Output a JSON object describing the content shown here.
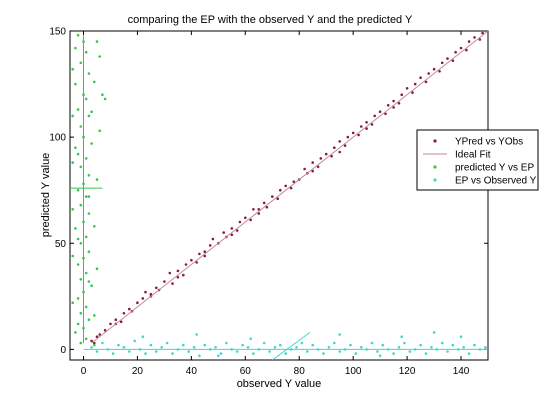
{
  "chart_data": {
    "type": "scatter",
    "title": "comparing the EP with the observed Y and the predicted Y",
    "xlabel": "observed Y value",
    "ylabel": "predicted Y value",
    "xlim": [
      -5,
      150
    ],
    "ylim": [
      -5,
      150
    ],
    "xticks": [
      0,
      20,
      40,
      60,
      80,
      100,
      120,
      140
    ],
    "yticks": [
      0,
      50,
      100,
      150
    ],
    "grid": false,
    "legend_position": "right",
    "legend": [
      {
        "label": "YPred vs YObs",
        "marker": "dot",
        "color": "#8b1a3a"
      },
      {
        "label": "Ideal Fit",
        "marker": "line",
        "color": "#c08aa8"
      },
      {
        "label": "predicted Y vs EP",
        "marker": "dot",
        "color": "#33c84a"
      },
      {
        "label": "EP vs Observed Y",
        "marker": "dot",
        "color": "#3fd8c8"
      }
    ],
    "series": [
      {
        "name": "YPred vs YObs",
        "style": "points",
        "color": "#8b1a3a",
        "points": [
          [
            3,
            4
          ],
          [
            4,
            3
          ],
          [
            5,
            6
          ],
          [
            6,
            7
          ],
          [
            8,
            9
          ],
          [
            10,
            12
          ],
          [
            12,
            14
          ],
          [
            14,
            13
          ],
          [
            15,
            17
          ],
          [
            17,
            19
          ],
          [
            18,
            18
          ],
          [
            20,
            22
          ],
          [
            22,
            24
          ],
          [
            23,
            27
          ],
          [
            25,
            25
          ],
          [
            27,
            29
          ],
          [
            28,
            28
          ],
          [
            30,
            32
          ],
          [
            32,
            36
          ],
          [
            33,
            31
          ],
          [
            35,
            37
          ],
          [
            37,
            35
          ],
          [
            38,
            40
          ],
          [
            40,
            42
          ],
          [
            42,
            41
          ],
          [
            43,
            45
          ],
          [
            45,
            44
          ],
          [
            47,
            49
          ],
          [
            48,
            52
          ],
          [
            50,
            50
          ],
          [
            52,
            55
          ],
          [
            53,
            53
          ],
          [
            55,
            57
          ],
          [
            57,
            56
          ],
          [
            58,
            60
          ],
          [
            60,
            62
          ],
          [
            62,
            61
          ],
          [
            63,
            66
          ],
          [
            65,
            64
          ],
          [
            67,
            69
          ],
          [
            68,
            67
          ],
          [
            70,
            72
          ],
          [
            72,
            71
          ],
          [
            73,
            75
          ],
          [
            75,
            77
          ],
          [
            77,
            76
          ],
          [
            78,
            79
          ],
          [
            80,
            80
          ],
          [
            82,
            85
          ],
          [
            83,
            83
          ],
          [
            85,
            88
          ],
          [
            87,
            86
          ],
          [
            88,
            90
          ],
          [
            90,
            92
          ],
          [
            92,
            91
          ],
          [
            93,
            95
          ],
          [
            95,
            98
          ],
          [
            97,
            96
          ],
          [
            98,
            100
          ],
          [
            100,
            102
          ],
          [
            102,
            101
          ],
          [
            103,
            105
          ],
          [
            105,
            107
          ],
          [
            107,
            106
          ],
          [
            108,
            110
          ],
          [
            110,
            112
          ],
          [
            112,
            111
          ],
          [
            113,
            115
          ],
          [
            115,
            117
          ],
          [
            117,
            116
          ],
          [
            118,
            120
          ],
          [
            120,
            123
          ],
          [
            122,
            121
          ],
          [
            123,
            125
          ],
          [
            125,
            128
          ],
          [
            127,
            126
          ],
          [
            128,
            130
          ],
          [
            130,
            132
          ],
          [
            132,
            131
          ],
          [
            133,
            135
          ],
          [
            135,
            137
          ],
          [
            137,
            136
          ],
          [
            138,
            140
          ],
          [
            140,
            142
          ],
          [
            142,
            141
          ],
          [
            143,
            145
          ],
          [
            145,
            147
          ],
          [
            147,
            146
          ],
          [
            148,
            149
          ],
          [
            115,
            114
          ],
          [
            105,
            104
          ],
          [
            95,
            93
          ],
          [
            85,
            84
          ],
          [
            65,
            66
          ],
          [
            55,
            54
          ],
          [
            45,
            46
          ],
          [
            35,
            34
          ],
          [
            25,
            26
          ],
          [
            12,
            12
          ]
        ]
      },
      {
        "name": "Ideal Fit",
        "style": "line",
        "color": "#c08aa8",
        "points": [
          [
            3,
            3
          ],
          [
            150,
            150
          ]
        ]
      },
      {
        "name": "predicted Y vs EP",
        "style": "points",
        "color": "#33c84a",
        "points": [
          [
            -2,
            148
          ],
          [
            0,
            145
          ],
          [
            1,
            140
          ],
          [
            -1,
            135
          ],
          [
            2,
            130
          ],
          [
            -3,
            125
          ],
          [
            0,
            120
          ],
          [
            1,
            118
          ],
          [
            -2,
            113
          ],
          [
            2,
            110
          ],
          [
            -1,
            105
          ],
          [
            0,
            100
          ],
          [
            3,
            97
          ],
          [
            -3,
            95
          ],
          [
            1,
            90
          ],
          [
            -1,
            86
          ],
          [
            2,
            82
          ],
          [
            0,
            78
          ],
          [
            -2,
            75
          ],
          [
            1,
            72
          ],
          [
            -1,
            68
          ],
          [
            2,
            64
          ],
          [
            0,
            60
          ],
          [
            -3,
            57
          ],
          [
            1,
            53
          ],
          [
            -1,
            50
          ],
          [
            2,
            46
          ],
          [
            0,
            43
          ],
          [
            -2,
            40
          ],
          [
            1,
            36
          ],
          [
            -1,
            33
          ],
          [
            3,
            30
          ],
          [
            0,
            27
          ],
          [
            -2,
            24
          ],
          [
            1,
            20
          ],
          [
            -1,
            17
          ],
          [
            2,
            14
          ],
          [
            0,
            10
          ],
          [
            -3,
            8
          ],
          [
            1,
            5
          ],
          [
            -1,
            3
          ],
          [
            4,
            2
          ],
          [
            5,
            145
          ],
          [
            6,
            138
          ],
          [
            7,
            120
          ],
          [
            -4,
            132
          ],
          [
            4,
            126
          ],
          [
            -4,
            110
          ],
          [
            6,
            103
          ],
          [
            -4,
            88
          ],
          [
            5,
            80
          ],
          [
            -4,
            66
          ],
          [
            4,
            58
          ],
          [
            -4,
            44
          ],
          [
            5,
            38
          ],
          [
            -4,
            22
          ],
          [
            4,
            16
          ],
          [
            8,
            118
          ],
          [
            -3,
            142
          ],
          [
            3,
            112
          ],
          [
            -2,
            92
          ],
          [
            2,
            72
          ],
          [
            -2,
            52
          ],
          [
            2,
            32
          ],
          [
            -2,
            12
          ]
        ]
      },
      {
        "name": "predicted Y vs EP (marker line)",
        "style": "line",
        "color": "#33c84a",
        "points": [
          [
            -5,
            76
          ],
          [
            7,
            76
          ]
        ]
      },
      {
        "name": "predicted Y vs EP (marker line 2)",
        "style": "line",
        "color": "#33c84a",
        "points": [
          [
            0,
            3
          ],
          [
            0,
            148
          ]
        ]
      },
      {
        "name": "EP vs Observed Y",
        "style": "points",
        "color": "#3fd8c8",
        "points": [
          [
            3,
            1
          ],
          [
            5,
            -1
          ],
          [
            7,
            3
          ],
          [
            9,
            0
          ],
          [
            11,
            -2
          ],
          [
            13,
            2
          ],
          [
            15,
            1
          ],
          [
            17,
            -1
          ],
          [
            19,
            4
          ],
          [
            21,
            0
          ],
          [
            23,
            -2
          ],
          [
            25,
            2
          ],
          [
            27,
            -1
          ],
          [
            29,
            1
          ],
          [
            31,
            3
          ],
          [
            33,
            -2
          ],
          [
            35,
            0
          ],
          [
            37,
            2
          ],
          [
            39,
            -1
          ],
          [
            41,
            1
          ],
          [
            43,
            -3
          ],
          [
            45,
            2
          ],
          [
            47,
            0
          ],
          [
            49,
            1
          ],
          [
            51,
            -2
          ],
          [
            53,
            3
          ],
          [
            55,
            0
          ],
          [
            57,
            -1
          ],
          [
            59,
            2
          ],
          [
            61,
            1
          ],
          [
            63,
            -2
          ],
          [
            65,
            0
          ],
          [
            67,
            3
          ],
          [
            69,
            -1
          ],
          [
            71,
            1
          ],
          [
            73,
            2
          ],
          [
            75,
            -2
          ],
          [
            77,
            0
          ],
          [
            79,
            1
          ],
          [
            81,
            3
          ],
          [
            83,
            -1
          ],
          [
            85,
            2
          ],
          [
            87,
            0
          ],
          [
            89,
            -2
          ],
          [
            91,
            1
          ],
          [
            93,
            3
          ],
          [
            95,
            -1
          ],
          [
            97,
            0
          ],
          [
            99,
            2
          ],
          [
            101,
            -2
          ],
          [
            103,
            1
          ],
          [
            105,
            0
          ],
          [
            107,
            3
          ],
          [
            109,
            -1
          ],
          [
            111,
            2
          ],
          [
            113,
            0
          ],
          [
            115,
            -2
          ],
          [
            117,
            1
          ],
          [
            119,
            3
          ],
          [
            121,
            -1
          ],
          [
            123,
            0
          ],
          [
            125,
            2
          ],
          [
            127,
            -2
          ],
          [
            129,
            1
          ],
          [
            131,
            0
          ],
          [
            133,
            3
          ],
          [
            135,
            -1
          ],
          [
            137,
            2
          ],
          [
            139,
            0
          ],
          [
            141,
            1
          ],
          [
            143,
            -2
          ],
          [
            145,
            2
          ],
          [
            147,
            0
          ],
          [
            149,
            1
          ],
          [
            22,
            6
          ],
          [
            42,
            7
          ],
          [
            62,
            5
          ],
          [
            95,
            7
          ],
          [
            118,
            6
          ],
          [
            130,
            8
          ],
          [
            140,
            6
          ],
          [
            50,
            -3
          ],
          [
            110,
            -3
          ]
        ]
      },
      {
        "name": "EP vs Observed Y (line 1)",
        "style": "line",
        "color": "#3fd8c8",
        "points": [
          [
            0,
            0
          ],
          [
            150,
            0
          ]
        ]
      },
      {
        "name": "EP vs Observed Y (line 2)",
        "style": "line",
        "color": "#3fd8c8",
        "points": [
          [
            70,
            -5
          ],
          [
            84,
            8
          ]
        ]
      }
    ]
  }
}
